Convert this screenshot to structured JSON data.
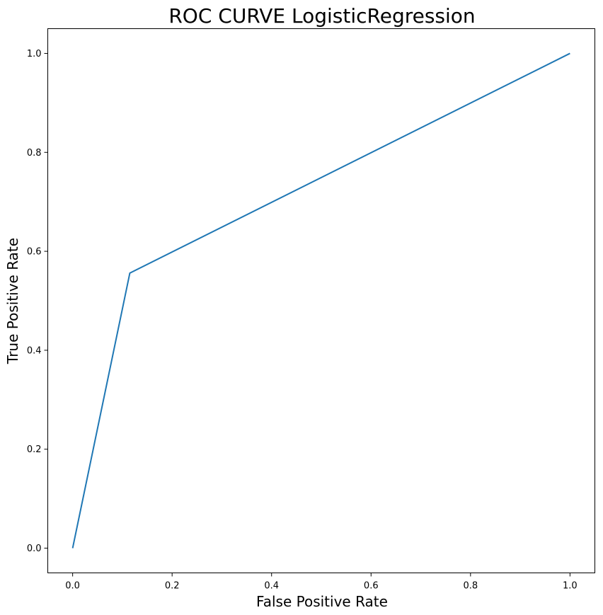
{
  "chart_data": {
    "type": "line",
    "title": "ROC CURVE LogisticRegression",
    "xlabel": "False Positive Rate",
    "ylabel": "True Positive Rate",
    "xlim": [
      -0.05,
      1.05
    ],
    "ylim": [
      -0.05,
      1.05
    ],
    "xticks": [
      "0.0",
      "0.2",
      "0.4",
      "0.6",
      "0.8",
      "1.0"
    ],
    "yticks": [
      "0.0",
      "0.2",
      "0.4",
      "0.6",
      "0.8",
      "1.0"
    ],
    "grid": false,
    "series": [
      {
        "x": [
          0.0,
          0.115,
          1.0
        ],
        "y": [
          0.0,
          0.556,
          1.0
        ],
        "color": "#1f77b4"
      }
    ]
  }
}
